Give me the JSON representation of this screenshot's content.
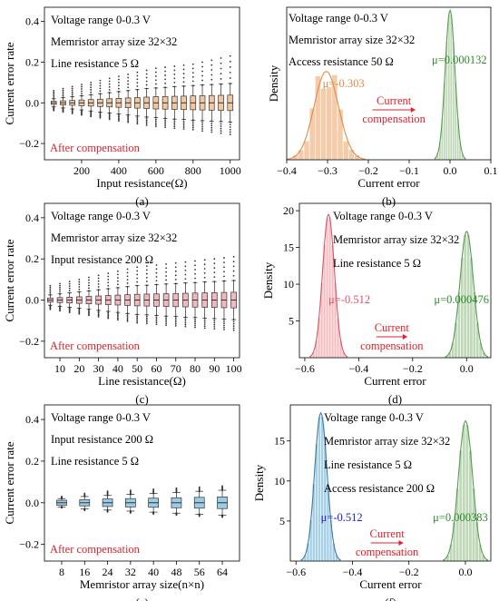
{
  "chart_data": [
    {
      "panel": "(a)",
      "type": "box",
      "ylabel": "Current error rate",
      "xlabel": "Input resistance(Ω)",
      "xlim": [
        0,
        1050
      ],
      "ylim": [
        -0.28,
        0.47
      ],
      "xticks": [
        200,
        400,
        600,
        800,
        1000
      ],
      "yticks": [
        0.4,
        0.2,
        0.0,
        -0.2
      ],
      "annotations": [
        "Voltage range 0-0.3 V",
        "Memristor array size 32×32",
        "Line resistance 5 Ω"
      ],
      "footer_note": "After compensation",
      "box_color": "#f5c7a0",
      "box_stroke": "#b07a4a",
      "x": [
        50,
        100,
        150,
        200,
        250,
        300,
        350,
        400,
        450,
        500,
        550,
        600,
        650,
        700,
        750,
        800,
        850,
        900,
        950,
        1000
      ],
      "whisker_hi": [
        0.02,
        0.025,
        0.03,
        0.035,
        0.04,
        0.045,
        0.05,
        0.055,
        0.06,
        0.065,
        0.07,
        0.073,
        0.076,
        0.08,
        0.082,
        0.085,
        0.088,
        0.09,
        0.092,
        0.095
      ],
      "q3": [
        0.008,
        0.01,
        0.012,
        0.014,
        0.016,
        0.018,
        0.02,
        0.022,
        0.024,
        0.026,
        0.028,
        0.03,
        0.031,
        0.032,
        0.033,
        0.034,
        0.035,
        0.036,
        0.037,
        0.038
      ],
      "median": [
        0,
        0,
        0,
        0,
        0,
        0,
        0,
        0,
        0,
        0,
        0,
        0,
        0,
        0,
        0,
        0,
        0,
        0,
        0,
        0
      ],
      "q1": [
        -0.008,
        -0.01,
        -0.012,
        -0.014,
        -0.016,
        -0.018,
        -0.02,
        -0.022,
        -0.024,
        -0.026,
        -0.028,
        -0.03,
        -0.031,
        -0.032,
        -0.033,
        -0.034,
        -0.035,
        -0.036,
        -0.037,
        -0.038
      ],
      "whisker_lo": [
        -0.02,
        -0.025,
        -0.03,
        -0.035,
        -0.04,
        -0.045,
        -0.05,
        -0.055,
        -0.06,
        -0.065,
        -0.07,
        -0.073,
        -0.076,
        -0.08,
        -0.082,
        -0.085,
        -0.088,
        -0.09,
        -0.092,
        -0.095
      ],
      "outlier_max": [
        0.06,
        0.07,
        0.08,
        0.09,
        0.1,
        0.11,
        0.12,
        0.13,
        0.14,
        0.15,
        0.16,
        0.17,
        0.175,
        0.18,
        0.185,
        0.19,
        0.2,
        0.21,
        0.22,
        0.23
      ]
    },
    {
      "panel": "(b)",
      "type": "histogram",
      "ylabel": "Density",
      "xlabel": "Current error",
      "xlim": [
        -0.4,
        0.1
      ],
      "ylim": [
        0,
        1
      ],
      "xticks": [
        -0.4,
        -0.3,
        -0.2,
        -0.1,
        0.0,
        0.1
      ],
      "xtick_labels": [
        "−0.4",
        "−0.3",
        "−0.2",
        "−0.1",
        "0.0",
        "0.1"
      ],
      "annotations": [
        "Voltage range 0-0.3 V",
        "Memristor array size 32×32",
        "Access resistance 50 Ω"
      ],
      "arrow_label": [
        "Current",
        "compensation"
      ],
      "series": [
        {
          "name": "μ=-0.303",
          "mu": -0.303,
          "sigma": 0.03,
          "peak": 0.58,
          "color": "#f5c7a0",
          "stroke": "#e08a4a",
          "label_color": "#e08a4a"
        },
        {
          "name": "μ=0.000132",
          "mu": 0.000132,
          "sigma": 0.012,
          "peak": 0.98,
          "color": "#b9d4b0",
          "stroke": "#5a9a55",
          "label_color": "#2c8a2c"
        }
      ]
    },
    {
      "panel": "(c)",
      "type": "box",
      "ylabel": "Current error rate",
      "xlabel": "Line resistance(Ω)",
      "xlim": [
        2,
        103
      ],
      "ylim": [
        -0.28,
        0.47
      ],
      "xticks": [
        10,
        20,
        30,
        40,
        50,
        60,
        70,
        80,
        90,
        100
      ],
      "yticks": [
        0.4,
        0.2,
        0.0,
        -0.2
      ],
      "annotations": [
        "Voltage range 0-0.3 V",
        "Memristor array size 32×32",
        "Input resistance 200 Ω"
      ],
      "footer_note": "After compensation",
      "box_color": "#f3b8bd",
      "box_stroke": "#b06a70",
      "x": [
        5,
        10,
        15,
        20,
        25,
        30,
        35,
        40,
        45,
        50,
        55,
        60,
        65,
        70,
        75,
        80,
        85,
        90,
        95,
        100
      ],
      "whisker_hi": [
        0.025,
        0.03,
        0.035,
        0.04,
        0.045,
        0.05,
        0.055,
        0.06,
        0.065,
        0.07,
        0.072,
        0.075,
        0.078,
        0.08,
        0.083,
        0.085,
        0.088,
        0.09,
        0.093,
        0.095
      ],
      "q3": [
        0.01,
        0.012,
        0.014,
        0.016,
        0.018,
        0.02,
        0.022,
        0.024,
        0.026,
        0.028,
        0.029,
        0.03,
        0.031,
        0.032,
        0.033,
        0.034,
        0.035,
        0.036,
        0.037,
        0.038
      ],
      "median": [
        0,
        0,
        0,
        0,
        0,
        0,
        0,
        0,
        0,
        0,
        0,
        0,
        0,
        0,
        0,
        0,
        0,
        0,
        0,
        0
      ],
      "q1": [
        -0.01,
        -0.012,
        -0.014,
        -0.016,
        -0.018,
        -0.02,
        -0.022,
        -0.024,
        -0.026,
        -0.028,
        -0.029,
        -0.03,
        -0.031,
        -0.032,
        -0.033,
        -0.034,
        -0.035,
        -0.036,
        -0.037,
        -0.038
      ],
      "whisker_lo": [
        -0.025,
        -0.03,
        -0.035,
        -0.04,
        -0.045,
        -0.05,
        -0.055,
        -0.06,
        -0.065,
        -0.07,
        -0.072,
        -0.075,
        -0.078,
        -0.08,
        -0.083,
        -0.085,
        -0.088,
        -0.09,
        -0.093,
        -0.095
      ],
      "outlier_max": [
        0.07,
        0.08,
        0.09,
        0.1,
        0.11,
        0.12,
        0.13,
        0.14,
        0.15,
        0.16,
        0.165,
        0.17,
        0.175,
        0.18,
        0.185,
        0.19,
        0.195,
        0.2,
        0.205,
        0.21
      ]
    },
    {
      "panel": "(d)",
      "type": "histogram",
      "ylabel": "Density",
      "xlabel": "Current error",
      "xlim": [
        -0.62,
        0.09
      ],
      "ylim": [
        0,
        21
      ],
      "xticks": [
        -0.6,
        -0.4,
        -0.2,
        0.0
      ],
      "xtick_labels": [
        "−0.6",
        "−0.4",
        "−0.2",
        "0.0"
      ],
      "yticks": [
        5,
        10,
        15,
        20
      ],
      "annotations": [
        "Voltage range 0-0.3 V",
        "Memristor array size 32×32",
        "Line resistance 5 Ω"
      ],
      "arrow_label": [
        "Current",
        "compensation"
      ],
      "series": [
        {
          "name": "μ=-0.512",
          "mu": -0.512,
          "sigma": 0.022,
          "peak": 19.5,
          "color": "#f3b8bd",
          "stroke": "#d05a68",
          "label_color": "#e0506a"
        },
        {
          "name": "μ=0.000476",
          "mu": 0.000476,
          "sigma": 0.025,
          "peak": 17.2,
          "color": "#b9d4b0",
          "stroke": "#5a9a55",
          "label_color": "#2c8a2c"
        }
      ]
    },
    {
      "panel": "(e)",
      "type": "box",
      "ylabel": "Current error rate",
      "xlabel": "Memristor array size(n×n)",
      "xlim": [
        2,
        70
      ],
      "ylim": [
        -0.28,
        0.47
      ],
      "xticks": [
        8,
        16,
        24,
        32,
        40,
        48,
        56,
        64
      ],
      "yticks": [
        0.4,
        0.2,
        0.0,
        -0.2
      ],
      "annotations": [
        "Voltage range 0-0.3 V",
        "Input resistance 200 Ω",
        "Line resistance 5 Ω"
      ],
      "footer_note": "After compensation",
      "box_color": "#9ccbe6",
      "box_stroke": "#3c6e90",
      "x": [
        8,
        16,
        24,
        32,
        40,
        48,
        56,
        64
      ],
      "whisker_hi": [
        0.02,
        0.03,
        0.035,
        0.04,
        0.045,
        0.05,
        0.055,
        0.06
      ],
      "q3": [
        0.012,
        0.015,
        0.018,
        0.02,
        0.022,
        0.024,
        0.026,
        0.028
      ],
      "median": [
        0,
        0,
        0,
        0,
        0,
        0,
        0,
        0
      ],
      "q1": [
        -0.012,
        -0.015,
        -0.018,
        -0.02,
        -0.022,
        -0.024,
        -0.026,
        -0.028
      ],
      "whisker_lo": [
        -0.02,
        -0.03,
        -0.035,
        -0.04,
        -0.045,
        -0.05,
        -0.055,
        -0.06
      ],
      "outlier_max": [
        0.03,
        0.045,
        0.055,
        0.06,
        0.065,
        0.07,
        0.075,
        0.08
      ]
    },
    {
      "panel": "(f)",
      "type": "histogram",
      "ylabel": "Density",
      "xlabel": "Current error",
      "xlim": [
        -0.62,
        0.09
      ],
      "ylim": [
        0,
        19.5
      ],
      "xticks": [
        -0.6,
        -0.4,
        -0.2,
        0.0
      ],
      "xtick_labels": [
        "−0.6",
        "−0.4",
        "−0.2",
        "0.0"
      ],
      "yticks": [
        5,
        10,
        15
      ],
      "annotations": [
        "Voltage range 0-0.3 V",
        "Memristor array size 32×32",
        "Line resistance 5 Ω",
        "Access resistance 200 Ω"
      ],
      "arrow_label": [
        "Current",
        "compensation"
      ],
      "series": [
        {
          "name": "μ=-0.512",
          "mu": -0.512,
          "sigma": 0.022,
          "peak": 18.5,
          "color": "#9ccbe6",
          "stroke": "#3c7aa8",
          "label_color": "#2020d0"
        },
        {
          "name": "μ=0.000383",
          "mu": 0.000383,
          "sigma": 0.025,
          "peak": 17.5,
          "color": "#b9d4b0",
          "stroke": "#5a9a55",
          "label_color": "#2c8a2c"
        }
      ]
    }
  ]
}
